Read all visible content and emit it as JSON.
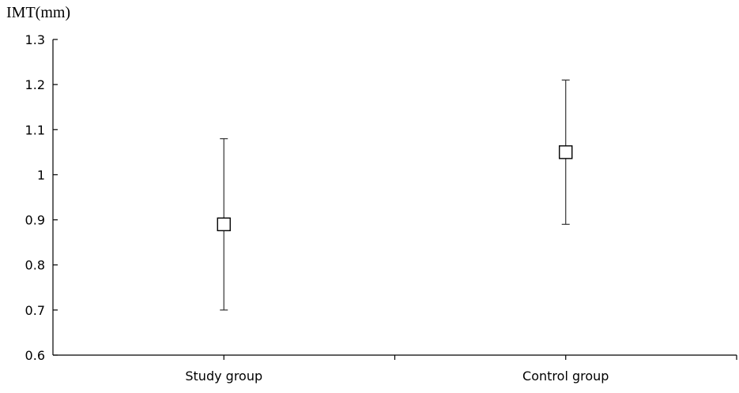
{
  "chart_data": {
    "type": "scatter",
    "ylabel": "IMT(mm)",
    "xlabel": "",
    "categories": [
      "Study group",
      "Control group"
    ],
    "values": [
      0.89,
      1.05
    ],
    "error_low": [
      0.7,
      0.89
    ],
    "error_high": [
      1.08,
      1.21
    ],
    "ylim": [
      0.6,
      1.3
    ],
    "yticks": [
      0.6,
      0.7,
      0.8,
      0.9,
      1.0,
      1.1,
      1.2,
      1.3
    ],
    "ytick_labels": [
      "0.6",
      "0.7",
      "0.8",
      "0.9",
      "1",
      "1.1",
      "1.2",
      "1.3"
    ],
    "grid": false,
    "marker": "open-square"
  }
}
